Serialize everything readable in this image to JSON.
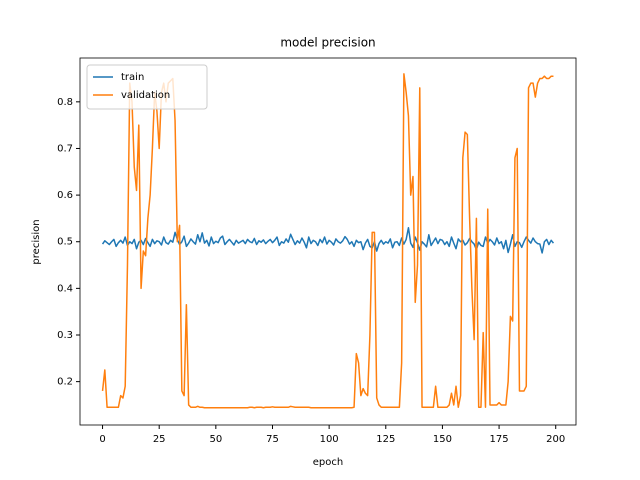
{
  "chart_data": {
    "type": "line",
    "title": "model precision",
    "x_label": "epoch",
    "y_label": "precision",
    "x": [
      0,
      1,
      2,
      3,
      4,
      5,
      6,
      7,
      8,
      9,
      10,
      11,
      12,
      13,
      14,
      15,
      16,
      17,
      18,
      19,
      20,
      21,
      22,
      23,
      24,
      25,
      26,
      27,
      28,
      29,
      30,
      31,
      32,
      33,
      34,
      35,
      36,
      37,
      38,
      39,
      40,
      41,
      42,
      43,
      44,
      45,
      46,
      47,
      48,
      49,
      50,
      51,
      52,
      53,
      54,
      55,
      56,
      57,
      58,
      59,
      60,
      61,
      62,
      63,
      64,
      65,
      66,
      67,
      68,
      69,
      70,
      71,
      72,
      73,
      74,
      75,
      76,
      77,
      78,
      79,
      80,
      81,
      82,
      83,
      84,
      85,
      86,
      87,
      88,
      89,
      90,
      91,
      92,
      93,
      94,
      95,
      96,
      97,
      98,
      99,
      100,
      101,
      102,
      103,
      104,
      105,
      106,
      107,
      108,
      109,
      110,
      111,
      112,
      113,
      114,
      115,
      116,
      117,
      118,
      119,
      120,
      121,
      122,
      123,
      124,
      125,
      126,
      127,
      128,
      129,
      130,
      131,
      132,
      133,
      134,
      135,
      136,
      137,
      138,
      139,
      140,
      141,
      142,
      143,
      144,
      145,
      146,
      147,
      148,
      149,
      150,
      151,
      152,
      153,
      154,
      155,
      156,
      157,
      158,
      159,
      160,
      161,
      162,
      163,
      164,
      165,
      166,
      167,
      168,
      169,
      170,
      171,
      172,
      173,
      174,
      175,
      176,
      177,
      178,
      179,
      180,
      181,
      182,
      183,
      184,
      185,
      186,
      187,
      188,
      189,
      190,
      191,
      192,
      193,
      194,
      195,
      196,
      197,
      198,
      199
    ],
    "series": [
      {
        "name": "train",
        "color": "#1f77b4",
        "values": [
          0.495,
          0.502,
          0.498,
          0.494,
          0.5,
          0.505,
          0.49,
          0.498,
          0.503,
          0.497,
          0.51,
          0.492,
          0.5,
          0.496,
          0.505,
          0.485,
          0.499,
          0.503,
          0.494,
          0.507,
          0.498,
          0.49,
          0.505,
          0.496,
          0.502,
          0.5,
          0.493,
          0.51,
          0.498,
          0.495,
          0.503,
          0.499,
          0.52,
          0.505,
          0.494,
          0.5,
          0.512,
          0.49,
          0.497,
          0.506,
          0.5,
          0.495,
          0.515,
          0.5,
          0.519,
          0.497,
          0.503,
          0.491,
          0.51,
          0.496,
          0.501,
          0.498,
          0.508,
          0.512,
          0.494,
          0.5,
          0.505,
          0.499,
          0.493,
          0.503,
          0.497,
          0.5,
          0.503,
          0.496,
          0.505,
          0.5,
          0.498,
          0.507,
          0.494,
          0.502,
          0.499,
          0.504,
          0.496,
          0.501,
          0.505,
          0.498,
          0.503,
          0.51,
          0.492,
          0.5,
          0.497,
          0.506,
          0.499,
          0.516,
          0.505,
          0.494,
          0.502,
          0.497,
          0.508,
          0.499,
          0.487,
          0.51,
          0.496,
          0.503,
          0.5,
          0.492,
          0.505,
          0.498,
          0.51,
          0.495,
          0.503,
          0.499,
          0.493,
          0.506,
          0.5,
          0.497,
          0.502,
          0.511,
          0.505,
          0.495,
          0.5,
          0.49,
          0.503,
          0.498,
          0.5,
          0.483,
          0.497,
          0.505,
          0.49,
          0.487,
          0.5,
          0.48,
          0.496,
          0.503,
          0.495,
          0.5,
          0.497,
          0.506,
          0.487,
          0.499,
          0.5,
          0.492,
          0.508,
          0.495,
          0.505,
          0.53,
          0.497,
          0.488,
          0.51,
          0.498,
          0.482,
          0.5,
          0.495,
          0.489,
          0.515,
          0.492,
          0.5,
          0.508,
          0.496,
          0.505,
          0.503,
          0.494,
          0.5,
          0.49,
          0.51,
          0.497,
          0.485,
          0.506,
          0.5,
          0.503,
          0.493,
          0.498,
          0.507,
          0.5,
          0.495,
          0.483,
          0.499,
          0.492,
          0.49,
          0.51,
          0.497,
          0.505,
          0.5,
          0.493,
          0.508,
          0.496,
          0.5,
          0.485,
          0.503,
          0.477,
          0.495,
          0.515,
          0.49,
          0.5,
          0.498,
          0.488,
          0.5,
          0.51,
          0.503,
          0.497,
          0.508,
          0.5,
          0.496,
          0.495,
          0.476,
          0.5,
          0.505,
          0.494,
          0.503,
          0.497
        ]
      },
      {
        "name": "validation",
        "color": "#ff7f0e",
        "values": [
          0.18,
          0.225,
          0.145,
          0.145,
          0.145,
          0.145,
          0.145,
          0.145,
          0.17,
          0.165,
          0.19,
          0.45,
          0.84,
          0.8,
          0.66,
          0.61,
          0.75,
          0.4,
          0.48,
          0.47,
          0.55,
          0.6,
          0.7,
          0.82,
          0.78,
          0.7,
          0.82,
          0.84,
          0.8,
          0.84,
          0.845,
          0.85,
          0.76,
          0.5,
          0.535,
          0.18,
          0.17,
          0.365,
          0.15,
          0.145,
          0.145,
          0.145,
          0.147,
          0.145,
          0.145,
          0.144,
          0.144,
          0.144,
          0.144,
          0.144,
          0.144,
          0.144,
          0.144,
          0.144,
          0.144,
          0.144,
          0.144,
          0.144,
          0.144,
          0.144,
          0.144,
          0.144,
          0.144,
          0.144,
          0.144,
          0.145,
          0.145,
          0.144,
          0.145,
          0.145,
          0.145,
          0.144,
          0.145,
          0.145,
          0.145,
          0.146,
          0.145,
          0.145,
          0.145,
          0.145,
          0.145,
          0.145,
          0.145,
          0.147,
          0.146,
          0.145,
          0.145,
          0.145,
          0.145,
          0.145,
          0.145,
          0.145,
          0.144,
          0.144,
          0.144,
          0.144,
          0.144,
          0.144,
          0.144,
          0.144,
          0.144,
          0.144,
          0.144,
          0.144,
          0.144,
          0.144,
          0.144,
          0.144,
          0.144,
          0.144,
          0.144,
          0.145,
          0.26,
          0.24,
          0.17,
          0.185,
          0.175,
          0.17,
          0.3,
          0.52,
          0.52,
          0.165,
          0.15,
          0.145,
          0.145,
          0.145,
          0.145,
          0.145,
          0.145,
          0.145,
          0.145,
          0.145,
          0.24,
          0.86,
          0.82,
          0.77,
          0.6,
          0.64,
          0.37,
          0.45,
          0.83,
          0.145,
          0.145,
          0.145,
          0.145,
          0.145,
          0.145,
          0.19,
          0.145,
          0.145,
          0.145,
          0.145,
          0.145,
          0.15,
          0.175,
          0.15,
          0.19,
          0.145,
          0.17,
          0.68,
          0.735,
          0.73,
          0.55,
          0.4,
          0.29,
          0.55,
          0.145,
          0.145,
          0.305,
          0.145,
          0.57,
          0.15,
          0.15,
          0.15,
          0.15,
          0.155,
          0.15,
          0.15,
          0.15,
          0.2,
          0.34,
          0.33,
          0.68,
          0.7,
          0.18,
          0.18,
          0.18,
          0.19,
          0.83,
          0.84,
          0.84,
          0.81,
          0.84,
          0.85,
          0.85,
          0.855,
          0.85,
          0.85,
          0.855,
          0.855
        ]
      }
    ],
    "xlim": [
      -9.95,
      208.95
    ],
    "ylim": [
      0.107,
      0.894
    ],
    "xticks": [
      0,
      25,
      50,
      75,
      100,
      125,
      150,
      175,
      200
    ],
    "yticks": [
      0.2,
      0.3,
      0.4,
      0.5,
      0.6,
      0.7,
      0.8
    ],
    "legend": "upper left"
  }
}
